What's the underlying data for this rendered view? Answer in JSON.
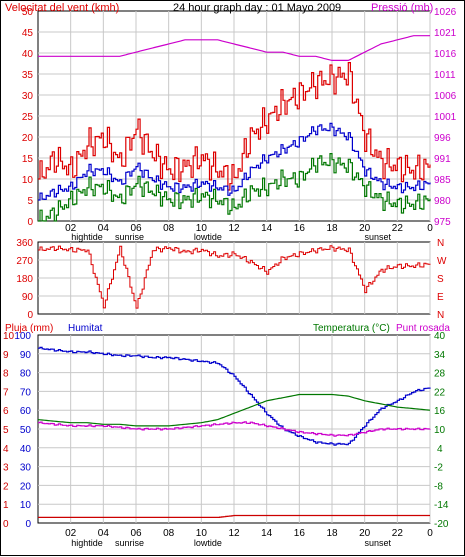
{
  "title": "24 hour graph day : 01 Mayo 2009",
  "wind_panel": {
    "left_label": "Velocitat del vent (kmh)",
    "right_label": "Pressió (mb)",
    "left_ticks": [
      "50",
      "45",
      "40",
      "35",
      "30",
      "25",
      "20",
      "15",
      "10",
      "5",
      "0"
    ],
    "right_ticks": [
      "1026",
      "1021",
      "1016",
      "1011",
      "1006",
      "1001",
      "996",
      "991",
      "985",
      "980",
      "975"
    ]
  },
  "direction_panel": {
    "left_ticks": [
      "360",
      "270",
      "180",
      "90",
      "0"
    ],
    "right_ticks": [
      "N",
      "W",
      "S",
      "E",
      "N"
    ]
  },
  "climate_panel": {
    "rain_label": "Pluja (mm)",
    "humidity_label": "Humitat",
    "temperature_label": "Temperatura (°C)",
    "dew_label": "Punt rosada",
    "rain_ticks": [
      "10",
      "9",
      "8",
      "7",
      "6",
      "5",
      "4",
      "3",
      "2",
      "1",
      "0"
    ],
    "humidity_ticks": [
      "100",
      "90",
      "80",
      "70",
      "60",
      "50",
      "40",
      "30",
      "20",
      "10",
      "0"
    ],
    "temperature_ticks": [
      "40",
      "34",
      "28",
      "22",
      "16",
      "10",
      "4",
      "-2",
      "-8",
      "-14",
      "-20"
    ]
  },
  "x_axis": {
    "ticks": [
      "02",
      "04",
      "06",
      "08",
      "10",
      "12",
      "14",
      "16",
      "18",
      "20",
      "22",
      "0"
    ],
    "events_top": [
      {
        "label": "hightide",
        "hour": 3.0
      },
      {
        "label": "sunrise",
        "hour": 5.6
      },
      {
        "label": "lowtide",
        "hour": 10.4
      },
      {
        "label": "sunset",
        "hour": 20.8
      }
    ],
    "events_bottom": [
      {
        "label": "hightide",
        "hour": 3.0
      },
      {
        "label": "sunrise",
        "hour": 5.6
      },
      {
        "label": "lowtide",
        "hour": 10.4
      },
      {
        "label": "sunset",
        "hour": 20.8
      }
    ]
  },
  "colors": {
    "gust": "#dd0000",
    "avg_wind": "#0000cc",
    "min_wind": "#007700",
    "pressure": "#cc00cc",
    "direction": "#dd0000",
    "humidity": "#0000cc",
    "temperature": "#007700",
    "dew_point": "#cc00cc",
    "rain": "#cc0000",
    "grid": "#c8c8c8",
    "title": "#000000"
  },
  "chart_data": [
    {
      "type": "line",
      "title": "24 hour graph day : 01 Mayo 2009",
      "xlabel": "",
      "ylabel": "Velocitat del vent (kmh)",
      "y2label": "Pressió (mb)",
      "ylim": [
        0,
        50
      ],
      "y2lim": [
        975,
        1026
      ],
      "x": [
        0,
        1,
        2,
        3,
        4,
        5,
        6,
        7,
        8,
        9,
        10,
        11,
        12,
        13,
        14,
        15,
        16,
        17,
        18,
        19,
        20,
        21,
        22,
        23,
        24
      ],
      "series": [
        {
          "name": "gust",
          "values": [
            10,
            15,
            12,
            18,
            20,
            14,
            22,
            16,
            12,
            13,
            15,
            12,
            10,
            20,
            24,
            28,
            30,
            33,
            34,
            35,
            20,
            14,
            13,
            12,
            13
          ]
        },
        {
          "name": "average",
          "values": [
            5,
            7,
            8,
            12,
            12,
            9,
            13,
            10,
            8,
            8,
            9,
            8,
            7,
            12,
            15,
            17,
            19,
            22,
            22,
            20,
            12,
            9,
            8,
            8,
            9
          ]
        },
        {
          "name": "minimum",
          "values": [
            0,
            2,
            5,
            8,
            8,
            5,
            9,
            7,
            5,
            5,
            6,
            5,
            3,
            7,
            8,
            10,
            10,
            14,
            14,
            13,
            8,
            5,
            4,
            4,
            5
          ]
        },
        {
          "name": "pressure",
          "values": [
            1015,
            1015,
            1015,
            1015,
            1015,
            1015,
            1016,
            1017,
            1018,
            1019,
            1019,
            1019,
            1018,
            1017,
            1016,
            1016,
            1015,
            1015,
            1014,
            1014,
            1016,
            1018,
            1019,
            1020,
            1020
          ]
        }
      ]
    },
    {
      "type": "line",
      "ylabel": "",
      "ylim": [
        0,
        360
      ],
      "x": [
        0,
        1,
        2,
        3,
        4,
        5,
        6,
        7,
        8,
        9,
        10,
        11,
        12,
        13,
        14,
        15,
        16,
        17,
        18,
        19,
        20,
        21,
        22,
        23,
        24
      ],
      "series": [
        {
          "name": "direction",
          "values": [
            320,
            330,
            320,
            320,
            40,
            330,
            30,
            320,
            330,
            310,
            320,
            290,
            300,
            260,
            210,
            280,
            300,
            320,
            330,
            320,
            120,
            220,
            240,
            240,
            250
          ]
        }
      ]
    },
    {
      "type": "line",
      "ylabel": "Humitat",
      "ylim": [
        0,
        100
      ],
      "y2lim": [
        -20,
        40
      ],
      "x": [
        0,
        1,
        2,
        3,
        4,
        5,
        6,
        7,
        8,
        9,
        10,
        11,
        12,
        13,
        14,
        15,
        16,
        17,
        18,
        19,
        20,
        21,
        22,
        23,
        24
      ],
      "series": [
        {
          "name": "humidity",
          "values": [
            93,
            92,
            91,
            91,
            90,
            89,
            89,
            88,
            88,
            87,
            86,
            85,
            78,
            68,
            58,
            50,
            46,
            43,
            42,
            42,
            52,
            61,
            65,
            70,
            72
          ]
        },
        {
          "name": "temperature",
          "values": [
            13,
            12.5,
            12,
            12,
            11.5,
            11.5,
            11,
            11,
            11,
            11.5,
            12,
            13,
            15,
            17,
            19,
            20,
            21,
            21,
            21,
            20.5,
            19,
            18,
            17,
            16.5,
            16
          ]
        },
        {
          "name": "dew_point",
          "values": [
            12,
            11.5,
            11,
            11,
            11,
            10.5,
            10,
            10,
            10,
            10.5,
            11,
            11.5,
            12,
            12,
            11,
            10,
            9,
            8.5,
            8,
            8,
            9,
            10,
            10,
            10,
            10
          ]
        },
        {
          "name": "rain",
          "values": [
            0.3,
            0.3,
            0.3,
            0.3,
            0.3,
            0.3,
            0.3,
            0.3,
            0.3,
            0.3,
            0.3,
            0.3,
            0.4,
            0.4,
            0.4,
            0.4,
            0.4,
            0.4,
            0.4,
            0.4,
            0.4,
            0.4,
            0.4,
            0.4,
            0.4
          ]
        }
      ]
    }
  ]
}
